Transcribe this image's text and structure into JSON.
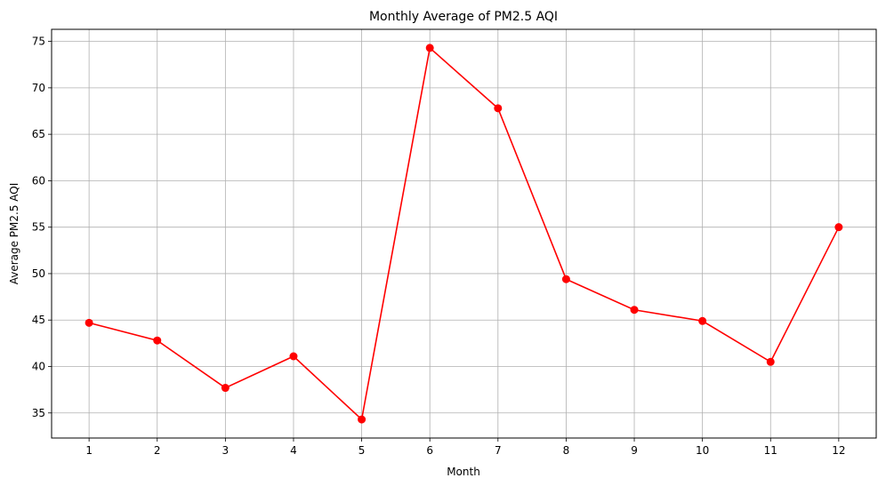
{
  "chart_data": {
    "type": "line",
    "title": "Monthly Average of PM2.5 AQI",
    "xlabel": "Month",
    "ylabel": "Average PM2.5 AQI",
    "x": [
      1,
      2,
      3,
      4,
      5,
      6,
      7,
      8,
      9,
      10,
      11,
      12
    ],
    "x_tick_labels": [
      "1",
      "2",
      "3",
      "4",
      "5",
      "6",
      "7",
      "8",
      "9",
      "10",
      "11",
      "12"
    ],
    "y_ticks": [
      35,
      40,
      45,
      50,
      55,
      60,
      65,
      70,
      75
    ],
    "y_tick_labels": [
      "35",
      "40",
      "45",
      "50",
      "55",
      "60",
      "65",
      "70",
      "75"
    ],
    "xlim": [
      0.45,
      12.55
    ],
    "ylim": [
      32.3,
      76.3
    ],
    "grid": true,
    "series": [
      {
        "values": [
          44.7,
          42.8,
          37.7,
          41.1,
          34.3,
          74.3,
          67.8,
          49.4,
          46.1,
          44.9,
          40.5,
          55.0
        ],
        "color": "#ff0000",
        "marker": "circle"
      }
    ]
  }
}
